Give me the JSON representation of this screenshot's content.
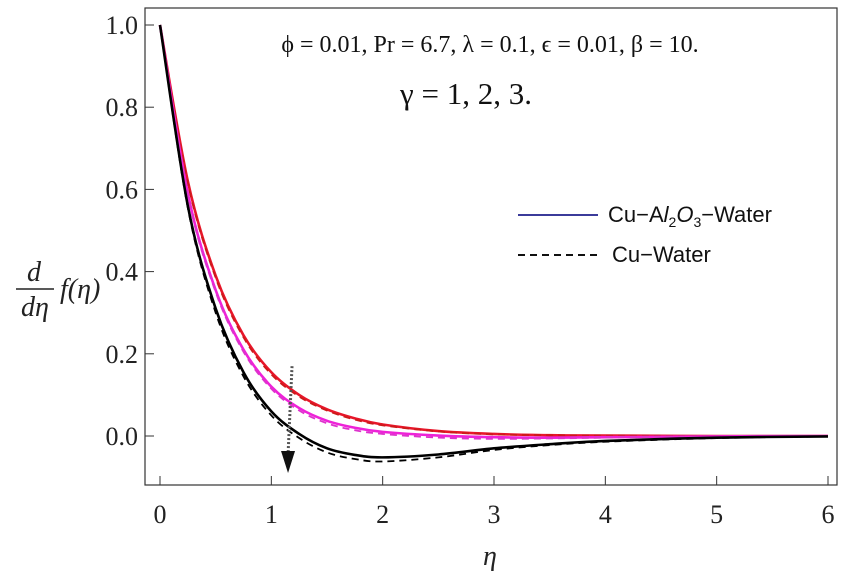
{
  "chart_data": {
    "type": "line",
    "xlabel": "η",
    "ylabel": {
      "numerator": "d",
      "denominator": "dη",
      "function": "f(η)"
    },
    "xlim": [
      0,
      6
    ],
    "ylim": [
      -0.08,
      1.02
    ],
    "x_ticks": [
      "0",
      "1",
      "2",
      "3",
      "4",
      "5",
      "6"
    ],
    "y_ticks": [
      "0.0",
      "0.2",
      "0.4",
      "0.6",
      "0.8",
      "1.0"
    ],
    "grid": false,
    "annotations": {
      "params": "ϕ = 0.01, Pr = 6.7, λ = 0.1, ϵ = 0.01, β = 10.",
      "gamma": "γ = 1, 2, 3."
    },
    "legend": {
      "placement": "right",
      "entries": [
        {
          "label_parts": [
            "Cu−A",
            "l",
            "2",
            "O",
            "3",
            "−Water"
          ],
          "style": "solid",
          "color": "#3b3b9a"
        },
        {
          "label": "Cu−Water",
          "style": "dashed",
          "color": "#111111"
        }
      ]
    },
    "arrow": {
      "x": 1.15,
      "y_from": 0.17,
      "y_to": -0.09,
      "meaning": "increasing γ"
    },
    "series": [
      {
        "style": "solid",
        "color": "#e8162a",
        "x": [
          0,
          0.25,
          0.5,
          0.75,
          1.0,
          1.25,
          1.5,
          1.75,
          2.0,
          2.5,
          3.0,
          3.5,
          4.0,
          5.0,
          6.0
        ],
        "y": [
          1.0,
          0.62,
          0.39,
          0.245,
          0.155,
          0.1,
          0.065,
          0.043,
          0.028,
          0.012,
          0.005,
          0.002,
          0.001,
          0.0,
          0.0
        ]
      },
      {
        "style": "dashed",
        "color": "#cc1a1a",
        "x": [
          0,
          0.25,
          0.5,
          0.75,
          1.0,
          1.25,
          1.5,
          1.75,
          2.0,
          2.5,
          3.0,
          3.5,
          4.0,
          5.0,
          6.0
        ],
        "y": [
          1.0,
          0.615,
          0.385,
          0.24,
          0.15,
          0.096,
          0.062,
          0.04,
          0.026,
          0.011,
          0.004,
          0.002,
          0.001,
          0.0,
          0.0
        ]
      },
      {
        "style": "solid",
        "color": "#ee22d8",
        "x": [
          0,
          0.25,
          0.5,
          0.75,
          1.0,
          1.25,
          1.5,
          1.75,
          2.0,
          2.5,
          3.0,
          3.5,
          4.0,
          5.0,
          6.0
        ],
        "y": [
          1.0,
          0.59,
          0.355,
          0.21,
          0.12,
          0.068,
          0.037,
          0.02,
          0.01,
          0.001,
          -0.003,
          -0.004,
          -0.003,
          -0.001,
          0.0
        ]
      },
      {
        "style": "dashed",
        "color": "#dd33cc",
        "x": [
          0,
          0.25,
          0.5,
          0.75,
          1.0,
          1.25,
          1.5,
          1.75,
          2.0,
          2.5,
          3.0,
          3.5,
          4.0,
          5.0,
          6.0
        ],
        "y": [
          1.0,
          0.585,
          0.35,
          0.205,
          0.115,
          0.062,
          0.031,
          0.014,
          0.005,
          -0.004,
          -0.007,
          -0.006,
          -0.004,
          -0.001,
          0.0
        ]
      },
      {
        "style": "solid",
        "color": "#000000",
        "x": [
          0,
          0.25,
          0.5,
          0.75,
          1.0,
          1.25,
          1.5,
          1.75,
          2.0,
          2.5,
          3.0,
          3.5,
          4.0,
          5.0,
          6.0
        ],
        "y": [
          1.0,
          0.56,
          0.31,
          0.155,
          0.06,
          0.005,
          -0.03,
          -0.046,
          -0.052,
          -0.045,
          -0.03,
          -0.02,
          -0.012,
          -0.004,
          -0.001
        ]
      },
      {
        "style": "dashed",
        "color": "#000000",
        "x": [
          0,
          0.25,
          0.5,
          0.75,
          1.0,
          1.25,
          1.5,
          1.75,
          2.0,
          2.5,
          3.0,
          3.5,
          4.0,
          5.0,
          6.0
        ],
        "y": [
          1.0,
          0.555,
          0.3,
          0.145,
          0.05,
          -0.005,
          -0.04,
          -0.056,
          -0.062,
          -0.052,
          -0.034,
          -0.022,
          -0.014,
          -0.005,
          -0.001
        ]
      }
    ]
  }
}
